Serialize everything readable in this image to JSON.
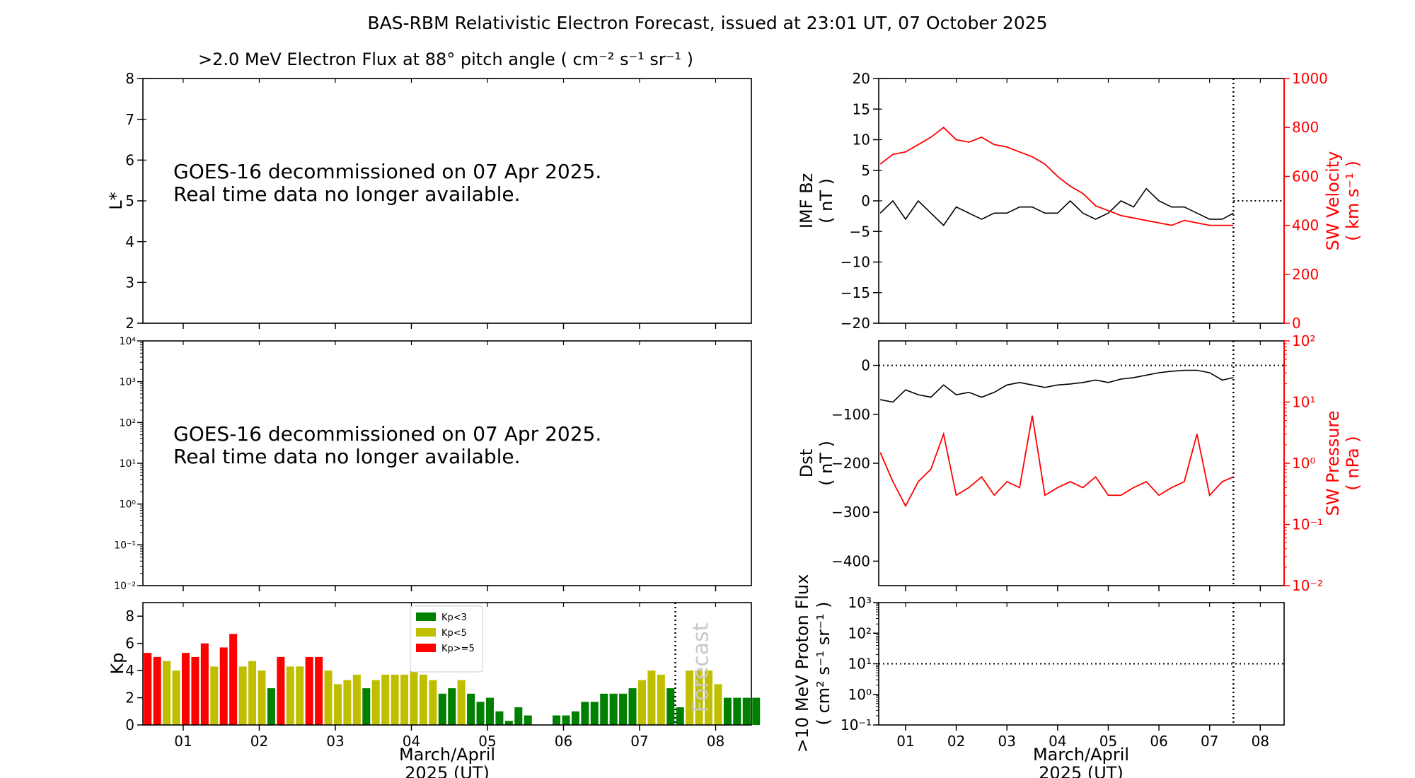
{
  "figure": {
    "title": "BAS-RBM Relativistic Electron Forecast, issued at 23:01 UT, 07 October 2025"
  },
  "colors": {
    "axis": "#000000",
    "red": "#ff0000",
    "kp_low": "#008000",
    "kp_mid": "#bfbf00",
    "kp_high": "#ff0000",
    "forecast_text": "#c8c8c8"
  },
  "panels": {
    "flux": {
      "title": ">2.0 MeV Electron Flux at 88° pitch angle ( cm⁻² s⁻¹ sr⁻¹ )",
      "ylabel": "L*",
      "message_line1": "GOES-16 decommissioned on 07 Apr 2025.",
      "message_line2": "Real time data no longer available."
    },
    "flux_log": {
      "message_line1": "GOES-16 decommissioned on 07 Apr 2025.",
      "message_line2": "Real time data no longer available."
    },
    "kp": {
      "ylabel": "Kp",
      "forecast_label": "Forecast",
      "xlabel_line1": "March/April",
      "xlabel_line2": "2025 (UT)",
      "legend": [
        "Kp<3",
        "Kp<5",
        "Kp>=5"
      ]
    },
    "imf": {
      "ylabel_line1": "IMF Bz",
      "ylabel_line2": "( nT )",
      "ylabel_right_line1": "SW Velocity",
      "ylabel_right_line2": "( km s⁻¹ )"
    },
    "dst": {
      "ylabel_line1": "Dst",
      "ylabel_line2": "( nT )",
      "ylabel_right_line1": "SW Pressure",
      "ylabel_right_line2": "( nPa )"
    },
    "proton": {
      "ylabel_line1": ">10 MeV Proton Flux",
      "ylabel_line2": "( cm² s⁻¹ sr⁻¹ )",
      "xlabel_line1": "March/April",
      "xlabel_line2": "2025 (UT)"
    }
  },
  "chart_data": [
    {
      "id": "flux",
      "type": "heatmap",
      "title": ">2.0 MeV Electron Flux at 88° pitch angle ( cm⁻² s⁻¹ sr⁻¹ )",
      "ylabel": "L*",
      "ylim": [
        2,
        8
      ],
      "yticks": [
        "2",
        "3",
        "4",
        "5",
        "6",
        "7",
        "8"
      ],
      "values": []
    },
    {
      "id": "flux_log",
      "type": "line",
      "yscale": "log",
      "ylim_exp": [
        -2,
        4
      ],
      "yticks": [
        "10⁻²",
        "10⁻¹",
        "10⁰",
        "10¹",
        "10²",
        "10³",
        "10⁴"
      ],
      "values": []
    },
    {
      "id": "kp",
      "type": "bar",
      "ylabel": "Kp",
      "xlabel": "March/April 2025 (UT)",
      "xlim": [
        0.47,
        8.47
      ],
      "ylim": [
        0,
        9
      ],
      "yticks": [
        "0",
        "2",
        "4",
        "6",
        "8"
      ],
      "xticks": [
        "01",
        "02",
        "03",
        "04",
        "05",
        "06",
        "07",
        "08"
      ],
      "forecast_start": 7.47,
      "bar_width": 0.125,
      "thresholds": [
        3,
        5
      ],
      "values": [
        5.3,
        5.0,
        4.7,
        4.0,
        5.3,
        5.0,
        6.0,
        4.3,
        5.7,
        6.7,
        4.3,
        4.7,
        4.0,
        2.7,
        5.0,
        4.3,
        4.3,
        5.0,
        5.0,
        4.0,
        3.0,
        3.3,
        3.7,
        2.7,
        3.3,
        3.7,
        3.7,
        3.7,
        4.0,
        3.7,
        3.3,
        2.3,
        2.7,
        3.3,
        2.3,
        1.7,
        2.0,
        1.0,
        0.3,
        1.3,
        0.7,
        0.0,
        0.0,
        0.7,
        0.7,
        1.0,
        1.7,
        1.7,
        2.3,
        2.3,
        2.3,
        2.7,
        3.3,
        4.0,
        3.7,
        2.7,
        1.3,
        4.0,
        4.0,
        4.0,
        3.0,
        2.0,
        2.0,
        2.0,
        2.0
      ]
    },
    {
      "id": "imf",
      "type": "line",
      "ylabel": "IMF Bz ( nT )",
      "ylim": [
        -20,
        20
      ],
      "yticks": [
        "−20",
        "−15",
        "−10",
        "−5",
        "0",
        "5",
        "10",
        "15",
        "20"
      ],
      "y2label": "SW Velocity ( km s⁻¹ )",
      "y2lim": [
        0,
        1000
      ],
      "y2ticks": [
        "0",
        "200",
        "400",
        "600",
        "800",
        "1000"
      ],
      "xlim": [
        0.47,
        8.47
      ],
      "xticks": [
        "01",
        "02",
        "03",
        "04",
        "05",
        "06",
        "07",
        "08"
      ],
      "nowcast_end": 7.47,
      "series": [
        {
          "name": "IMF Bz",
          "color": "#000000",
          "x": [
            0.5,
            0.75,
            1.0,
            1.25,
            1.5,
            1.75,
            2.0,
            2.25,
            2.5,
            2.75,
            3.0,
            3.25,
            3.5,
            3.75,
            4.0,
            4.25,
            4.5,
            4.75,
            5.0,
            5.25,
            5.5,
            5.75,
            6.0,
            6.25,
            6.5,
            6.75,
            7.0,
            7.25,
            7.47
          ],
          "values": [
            -2,
            0,
            -3,
            0,
            -2,
            -4,
            -1,
            -2,
            -3,
            -2,
            -2,
            -1,
            -1,
            -2,
            -2,
            0,
            -2,
            -3,
            -2,
            0,
            -1,
            2,
            0,
            -1,
            -1,
            -2,
            -3,
            -3,
            -2
          ]
        },
        {
          "name": "SW Velocity",
          "color": "#ff0000",
          "x": [
            0.5,
            0.75,
            1.0,
            1.25,
            1.5,
            1.75,
            2.0,
            2.25,
            2.5,
            2.75,
            3.0,
            3.25,
            3.5,
            3.75,
            4.0,
            4.25,
            4.5,
            4.75,
            5.0,
            5.25,
            5.5,
            5.75,
            6.0,
            6.25,
            6.5,
            6.75,
            7.0,
            7.25,
            7.47
          ],
          "values": [
            650,
            690,
            700,
            730,
            760,
            800,
            750,
            740,
            760,
            730,
            720,
            700,
            680,
            650,
            600,
            560,
            530,
            480,
            460,
            440,
            430,
            420,
            410,
            400,
            420,
            410,
            400,
            400,
            400
          ]
        }
      ]
    },
    {
      "id": "dst",
      "type": "line",
      "ylabel": "Dst ( nT )",
      "ylim": [
        -450,
        50
      ],
      "yticks": [
        "−400",
        "−300",
        "−200",
        "−100",
        "0"
      ],
      "y2label": "SW Pressure ( nPa )",
      "y2scale": "log",
      "y2lim_exp": [
        -2,
        2
      ],
      "y2ticks": [
        "10⁻²",
        "10⁻¹",
        "10⁰",
        "10¹",
        "10²"
      ],
      "xlim": [
        0.47,
        8.47
      ],
      "xticks": [
        "01",
        "02",
        "03",
        "04",
        "05",
        "06",
        "07",
        "08"
      ],
      "nowcast_end": 7.47,
      "series": [
        {
          "name": "Dst",
          "color": "#000000",
          "x": [
            0.5,
            0.75,
            1.0,
            1.25,
            1.5,
            1.75,
            2.0,
            2.25,
            2.5,
            2.75,
            3.0,
            3.25,
            3.5,
            3.75,
            4.0,
            4.25,
            4.5,
            4.75,
            5.0,
            5.25,
            5.5,
            5.75,
            6.0,
            6.25,
            6.5,
            6.75,
            7.0,
            7.25,
            7.47
          ],
          "values": [
            -70,
            -75,
            -50,
            -60,
            -65,
            -40,
            -60,
            -55,
            -65,
            -55,
            -40,
            -35,
            -40,
            -45,
            -40,
            -38,
            -35,
            -30,
            -35,
            -28,
            -25,
            -20,
            -15,
            -12,
            -10,
            -10,
            -15,
            -30,
            -25
          ]
        },
        {
          "name": "SW Pressure",
          "color": "#ff0000",
          "x": [
            0.5,
            0.75,
            1.0,
            1.25,
            1.5,
            1.75,
            2.0,
            2.25,
            2.5,
            2.75,
            3.0,
            3.25,
            3.5,
            3.75,
            4.0,
            4.25,
            4.5,
            4.75,
            5.0,
            5.25,
            5.5,
            5.75,
            6.0,
            6.25,
            6.5,
            6.75,
            7.0,
            7.25,
            7.47
          ],
          "values": [
            1.5,
            0.5,
            0.2,
            0.5,
            0.8,
            3.0,
            0.3,
            0.4,
            0.6,
            0.3,
            0.5,
            0.4,
            6.0,
            0.3,
            0.4,
            0.5,
            0.4,
            0.6,
            0.3,
            0.3,
            0.4,
            0.5,
            0.3,
            0.4,
            0.5,
            3.0,
            0.3,
            0.5,
            0.6
          ]
        }
      ]
    },
    {
      "id": "proton",
      "type": "line",
      "ylabel": ">10 MeV Proton Flux ( cm² s⁻¹ sr⁻¹ )",
      "xlabel": "March/April 2025 (UT)",
      "yscale": "log",
      "ylim_exp": [
        -1,
        3
      ],
      "yticks": [
        "10⁻¹",
        "10⁰",
        "10¹",
        "10²",
        "10³"
      ],
      "threshold": 10,
      "xlim": [
        0.47,
        8.47
      ],
      "xticks": [
        "01",
        "02",
        "03",
        "04",
        "05",
        "06",
        "07",
        "08"
      ],
      "nowcast_end": 7.47,
      "values": []
    }
  ]
}
